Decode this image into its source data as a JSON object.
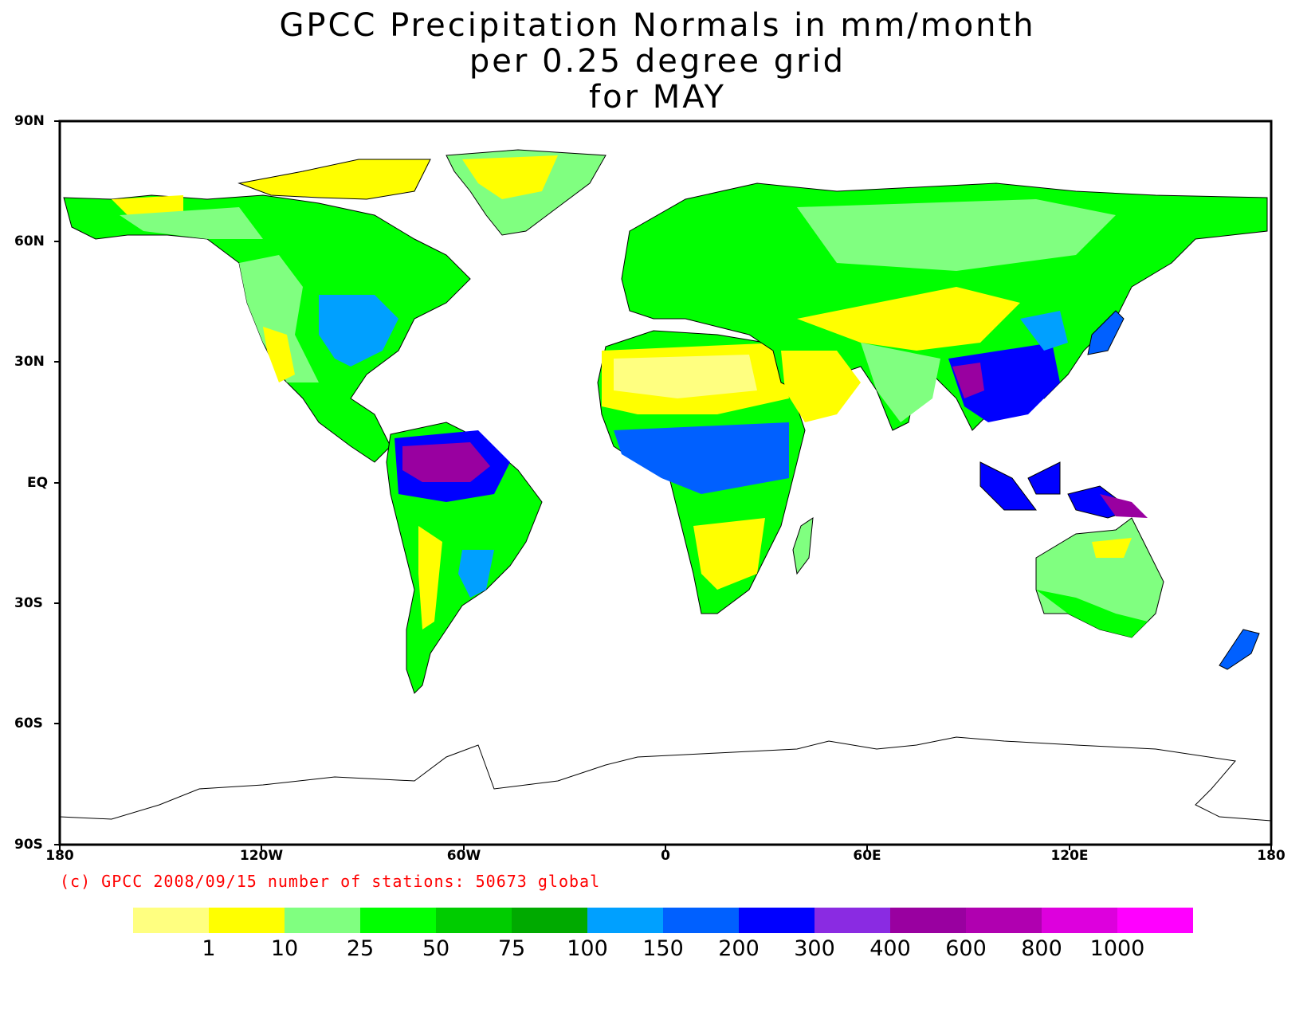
{
  "title": {
    "line1": "GPCC Precipitation Normals in mm/month",
    "line2": "per 0.25 degree grid",
    "line3": "for MAY"
  },
  "axes": {
    "lat_labels": [
      "90N",
      "60N",
      "30N",
      "EQ",
      "30S",
      "60S",
      "90S"
    ],
    "lon_labels": [
      "180",
      "120W",
      "60W",
      "0",
      "60E",
      "120E",
      "180"
    ]
  },
  "credit": "(c) GPCC 2008/09/15 number of stations: 50673 global",
  "colorbar": {
    "colors": [
      "#ffff80",
      "#ffff00",
      "#80ff80",
      "#00ff00",
      "#00cc00",
      "#00aa00",
      "#00a0ff",
      "#0060ff",
      "#0000ff",
      "#8a2be2",
      "#9900a0",
      "#b000b0",
      "#dd00dd",
      "#ff00ff"
    ],
    "labels": [
      "1",
      "10",
      "25",
      "50",
      "75",
      "100",
      "150",
      "200",
      "300",
      "400",
      "600",
      "800",
      "1000"
    ]
  }
}
